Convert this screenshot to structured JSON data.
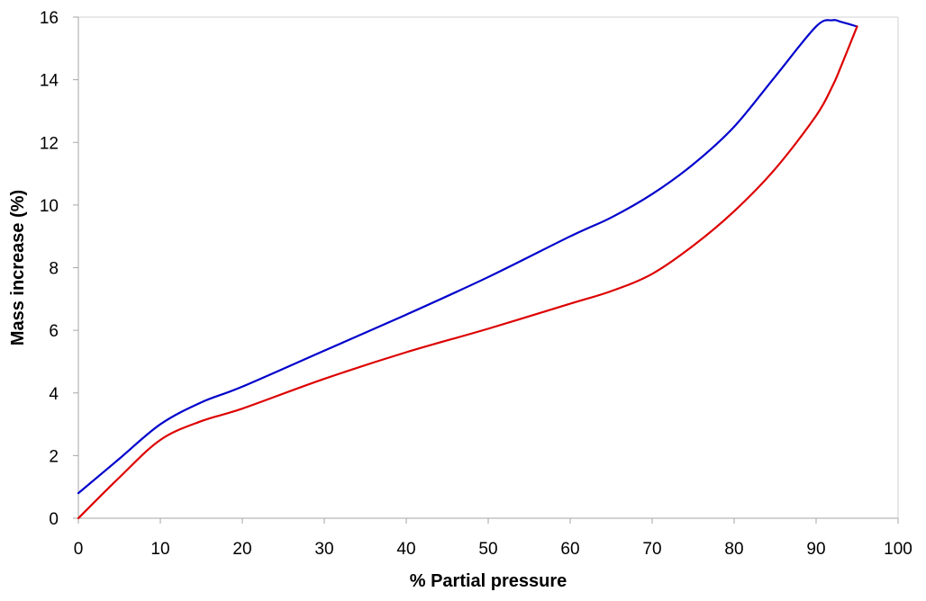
{
  "chart_data": {
    "type": "line",
    "title": "",
    "xlabel": "% Partial pressure",
    "ylabel": "Mass increase (%)",
    "xlim": [
      0,
      100
    ],
    "ylim": [
      0,
      16
    ],
    "xticks": [
      0,
      10,
      20,
      30,
      40,
      50,
      60,
      70,
      80,
      90,
      100
    ],
    "yticks": [
      0,
      2,
      4,
      6,
      8,
      10,
      12,
      14,
      16
    ],
    "grid": false,
    "legend": "none",
    "series": [
      {
        "color": "#0000cc",
        "x": [
          0,
          5,
          10,
          15,
          20,
          30,
          40,
          50,
          60,
          65,
          70,
          75,
          80,
          85,
          90,
          92,
          93,
          95
        ],
        "y": [
          0.8,
          1.9,
          3.0,
          3.7,
          4.2,
          5.35,
          6.5,
          7.7,
          9.0,
          9.6,
          10.35,
          11.3,
          12.5,
          14.1,
          15.7,
          15.9,
          15.85,
          15.7
        ]
      },
      {
        "color": "#dd0000",
        "x": [
          0,
          5,
          10,
          15,
          20,
          30,
          40,
          50,
          60,
          65,
          70,
          75,
          80,
          85,
          90,
          92,
          93,
          95
        ],
        "y": [
          0.0,
          1.3,
          2.5,
          3.1,
          3.5,
          4.45,
          5.3,
          6.05,
          6.85,
          7.25,
          7.8,
          8.7,
          9.8,
          11.15,
          12.85,
          13.8,
          14.4,
          15.7
        ]
      }
    ]
  }
}
